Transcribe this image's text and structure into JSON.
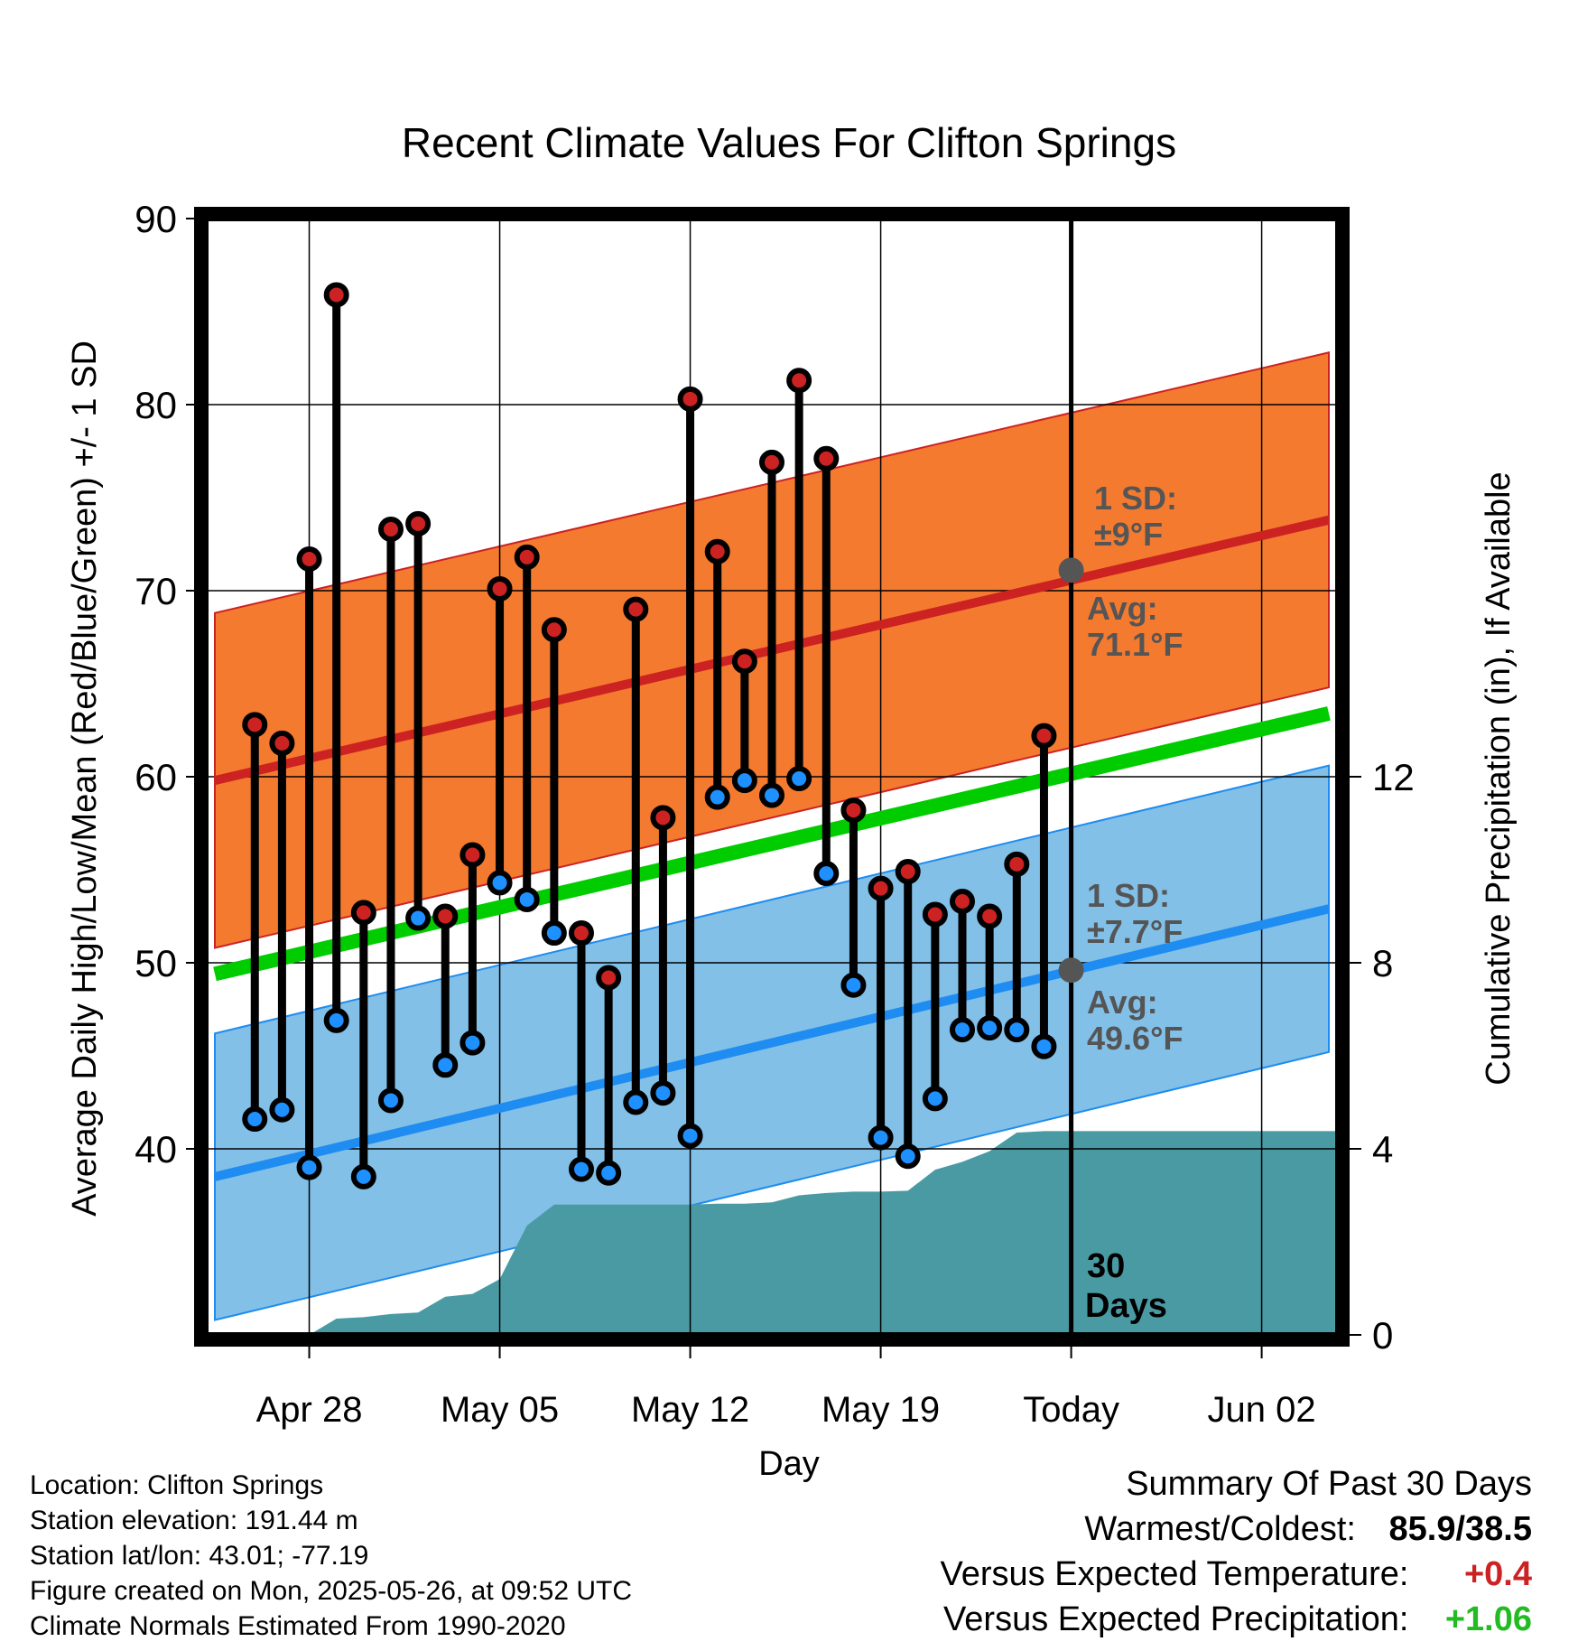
{
  "chart_data": {
    "type": "line",
    "title": "Recent Climate Values For Clifton Springs",
    "xlabel": "Day",
    "ylabel": "Average Daily High/Low/Mean (Red/Blue/Green) +/- 1 SD",
    "y2label": "Cumulative Precipitation (in), If Available",
    "ylim": [
      30,
      90
    ],
    "y2lim": [
      0,
      24
    ],
    "xlim": [
      -0.8,
      40.8
    ],
    "yticks": [
      "40",
      "50",
      "60",
      "70",
      "80",
      "90"
    ],
    "y2ticks": [
      "0",
      "4",
      "8",
      "12"
    ],
    "xticks": [
      {
        "x": 3,
        "label": "Apr 28"
      },
      {
        "x": 10,
        "label": "May 05"
      },
      {
        "x": 17,
        "label": "May 12"
      },
      {
        "x": 24,
        "label": "May 19"
      },
      {
        "x": 31,
        "label": "Today"
      },
      {
        "x": 38,
        "label": "Jun 02"
      }
    ],
    "today_x": 31,
    "today_label": [
      "30",
      "Days"
    ],
    "normals": {
      "high_avg": {
        "start": 59.8,
        "end": 73.8
      },
      "high_sd": 9,
      "mean_avg": {
        "start": 49.4,
        "end": 63.4
      },
      "low_avg": {
        "start": 38.5,
        "end": 52.9
      },
      "low_sd": 7.7
    },
    "annotations": {
      "high_sd": [
        "1 SD:",
        "±9°F"
      ],
      "high_avg": [
        "Avg:",
        "71.1°F"
      ],
      "high_avg_value": 71.1,
      "low_sd": [
        "1 SD:",
        "±7.7°F"
      ],
      "low_avg": [
        "Avg:",
        "49.6°F"
      ],
      "low_avg_value": 49.6
    },
    "days": [
      1,
      2,
      3,
      4,
      5,
      6,
      7,
      8,
      9,
      10,
      11,
      12,
      13,
      14,
      15,
      16,
      17,
      18,
      19,
      20,
      21,
      22,
      23,
      24,
      25,
      26,
      27,
      28,
      29,
      30
    ],
    "highs": [
      62.8,
      61.8,
      71.7,
      85.9,
      52.7,
      73.3,
      73.6,
      52.5,
      55.8,
      70.1,
      71.8,
      67.9,
      51.6,
      49.2,
      69.0,
      57.8,
      80.3,
      72.1,
      66.2,
      76.9,
      81.3,
      77.1,
      58.2,
      54.0,
      54.9,
      52.6,
      53.3,
      52.5,
      55.3,
      62.2
    ],
    "lows": [
      41.6,
      42.1,
      39.0,
      46.9,
      38.5,
      42.6,
      52.4,
      44.5,
      45.7,
      54.3,
      53.4,
      51.6,
      38.9,
      38.7,
      42.5,
      43.0,
      40.7,
      58.9,
      59.8,
      59.0,
      59.9,
      54.8,
      48.8,
      40.6,
      39.6,
      42.7,
      46.4,
      46.5,
      46.4,
      45.5
    ],
    "precip": {
      "x": [
        -0.3,
        3,
        4,
        5,
        6,
        7,
        8,
        9,
        10,
        11,
        12,
        13,
        14,
        15,
        16,
        17,
        18,
        19,
        20,
        21,
        22,
        23,
        24,
        25,
        26,
        27,
        28,
        29,
        30,
        40.7
      ],
      "values": [
        0,
        0,
        0.35,
        0.38,
        0.45,
        0.48,
        0.82,
        0.88,
        1.2,
        2.35,
        2.8,
        2.8,
        2.8,
        2.8,
        2.8,
        2.8,
        2.82,
        2.82,
        2.85,
        3.0,
        3.05,
        3.08,
        3.08,
        3.1,
        3.55,
        3.72,
        3.95,
        4.35,
        4.38,
        4.38
      ]
    }
  },
  "info": {
    "location": "Location: Clifton Springs",
    "elevation": "Station elevation: 191.44 m",
    "latlon": "Station lat/lon: 43.01; -77.19",
    "created": "Figure created on Mon, 2025-05-26, at 09:52 UTC",
    "normals": "Climate Normals Estimated From 1990-2020"
  },
  "summary": {
    "title": "Summary Of Past 30 Days",
    "warm_cold_label": "Warmest/Coldest:",
    "warm_cold_value": "85.9/38.5",
    "temp_label": "Versus Expected Temperature:",
    "temp_value": "+0.4",
    "precip_label": "Versus Expected Precipitation:",
    "precip_value": "+1.06"
  },
  "colors": {
    "high_band": "#f47a30",
    "high_line": "#cc2222",
    "low_band": "#82c0e8",
    "low_line": "#1e8cf0",
    "mean_line": "#00cc00",
    "precip": "#4a9aa4",
    "high_dot": "#cc2222",
    "low_dot": "#1e90ff",
    "annotation": "#555555",
    "temp_delta": "#cc2222",
    "precip_delta": "#22bb22"
  }
}
